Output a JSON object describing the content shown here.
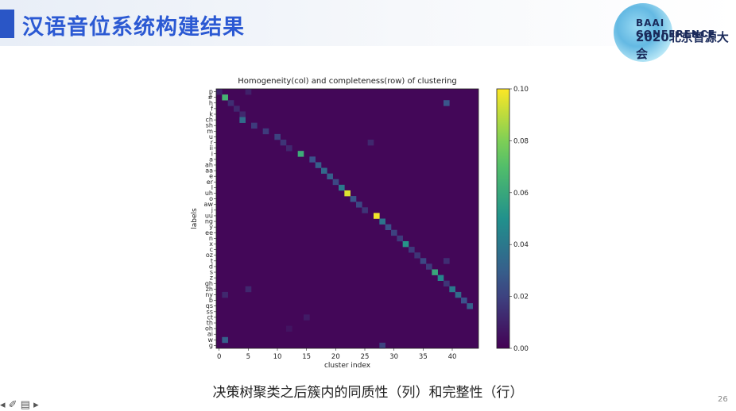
{
  "slide": {
    "title": "汉语音位系统构建结果",
    "logo_line1": "BAAI CONFERENCE",
    "logo_line2": "2020北京智源大会",
    "caption": "决策树聚类之后簇内的同质性（列）和完整性（行）",
    "page_number": "26",
    "controls": "◂ ✐ ▤ ▸"
  },
  "chart_data": {
    "type": "heatmap",
    "title": "Homogeneity(col) and completeness(row) of clustering",
    "xlabel": "cluster index",
    "ylabel": "labels",
    "x_ticks": [
      0,
      5,
      10,
      15,
      20,
      25,
      30,
      35,
      40
    ],
    "xlim": [
      0,
      44
    ],
    "y_labels": [
      "p",
      "#",
      "h",
      "f",
      "k",
      "ch",
      "sh",
      "m",
      "u",
      "r",
      "ii",
      "i",
      "a",
      "ah",
      "aa",
      "e",
      "er",
      "l",
      "uh",
      "o",
      "aw",
      "j",
      "uu",
      "ng",
      "y",
      "ee",
      "n",
      "x",
      "c",
      "oz",
      "t",
      "d",
      "s",
      "z",
      "gh",
      "zh",
      "ny",
      "b",
      "qs",
      "ss",
      "ct",
      "th",
      "oh",
      "ai",
      "w",
      "g"
    ],
    "colorbar": {
      "min": 0.0,
      "max": 0.1,
      "ticks": [
        "0.00",
        "0.02",
        "0.04",
        "0.06",
        "0.08",
        "0.10"
      ],
      "colormap": "viridis"
    },
    "background_value": 0.002,
    "cells": [
      [
        0,
        0,
        0.01
      ],
      [
        1,
        1,
        0.065
      ],
      [
        2,
        2,
        0.014
      ],
      [
        3,
        3,
        0.012
      ],
      [
        4,
        4,
        0.012
      ],
      [
        5,
        4,
        0.035
      ],
      [
        6,
        6,
        0.018
      ],
      [
        7,
        8,
        0.018
      ],
      [
        8,
        10,
        0.02
      ],
      [
        9,
        11,
        0.016
      ],
      [
        10,
        12,
        0.012
      ],
      [
        11,
        14,
        0.062
      ],
      [
        12,
        16,
        0.025
      ],
      [
        13,
        17,
        0.03
      ],
      [
        14,
        18,
        0.034
      ],
      [
        15,
        19,
        0.03
      ],
      [
        16,
        20,
        0.022
      ],
      [
        17,
        21,
        0.04
      ],
      [
        18,
        22,
        0.095
      ],
      [
        19,
        23,
        0.026
      ],
      [
        20,
        24,
        0.022
      ],
      [
        21,
        25,
        0.016
      ],
      [
        22,
        27,
        0.098
      ],
      [
        23,
        28,
        0.038
      ],
      [
        24,
        29,
        0.024
      ],
      [
        25,
        30,
        0.02
      ],
      [
        26,
        31,
        0.018
      ],
      [
        27,
        32,
        0.052
      ],
      [
        28,
        33,
        0.018
      ],
      [
        29,
        34,
        0.016
      ],
      [
        30,
        35,
        0.022
      ],
      [
        31,
        36,
        0.018
      ],
      [
        32,
        37,
        0.06
      ],
      [
        33,
        38,
        0.045
      ],
      [
        34,
        39,
        0.016
      ],
      [
        35,
        40,
        0.04
      ],
      [
        36,
        41,
        0.035
      ],
      [
        37,
        42,
        0.025
      ],
      [
        38,
        43,
        0.03
      ],
      [
        0,
        5,
        0.01
      ],
      [
        2,
        39,
        0.026
      ],
      [
        9,
        26,
        0.012
      ],
      [
        30,
        39,
        0.014
      ],
      [
        35,
        5,
        0.012
      ],
      [
        36,
        1,
        0.012
      ],
      [
        44,
        1,
        0.03
      ],
      [
        45,
        28,
        0.02
      ],
      [
        40,
        15,
        0.008
      ],
      [
        42,
        12,
        0.006
      ]
    ]
  }
}
